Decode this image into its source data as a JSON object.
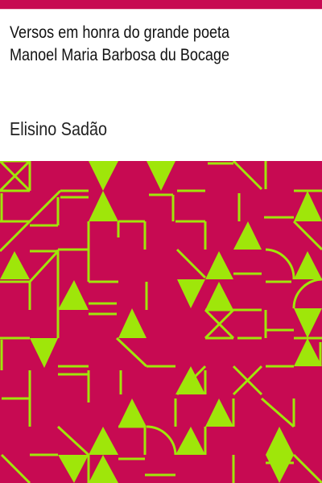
{
  "book": {
    "title_line_1": "Versos em honra do grande poeta",
    "title_line_2": "Manoel Maria Barbosa du Bocage",
    "author": "Elisino Sadão"
  },
  "colors": {
    "primary": "#c70a52",
    "accent": "#9fe60a",
    "text": "#111111"
  },
  "cover_art": {
    "name": "generated-geometric-cover-pattern"
  }
}
